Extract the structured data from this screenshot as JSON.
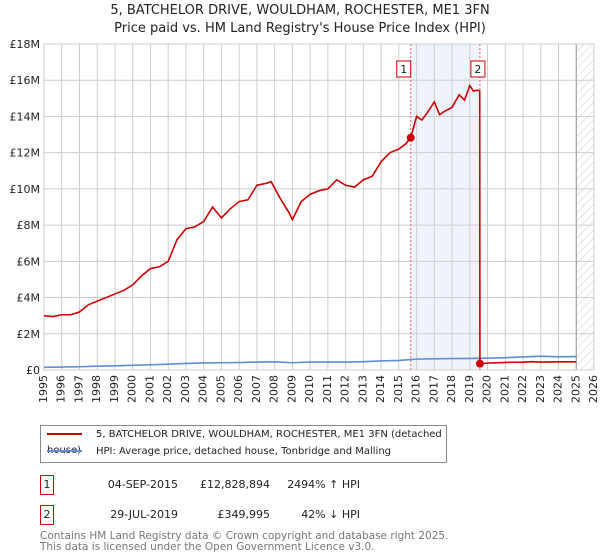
{
  "title_line1": "5, BATCHELOR DRIVE, WOULDHAM, ROCHESTER, ME1 3FN",
  "title_line2": "Price paid vs. HM Land Registry's House Price Index (HPI)",
  "legend": [
    {
      "label": "5, BATCHELOR DRIVE, WOULDHAM, ROCHESTER, ME1 3FN (detached house)",
      "color": "#cc0000"
    },
    {
      "label": "HPI: Average price, detached house, Tonbridge and Malling",
      "color": "#5b8fd0"
    }
  ],
  "transactions": [
    {
      "num": "1",
      "date": "04-SEP-2015",
      "price": "£12,828,894",
      "hpi": "2494% ↑ HPI"
    },
    {
      "num": "2",
      "date": "29-JUL-2019",
      "price": "£349,995",
      "hpi": "42% ↓ HPI"
    }
  ],
  "footer_line1": "Contains HM Land Registry data © Crown copyright and database right 2025.",
  "footer_line2": "This data is licensed under the Open Government Licence v3.0.",
  "chart_data": {
    "type": "line",
    "xlim": [
      1995,
      2026
    ],
    "ylim": [
      0,
      18000000
    ],
    "yticks": [
      0,
      2000000,
      4000000,
      6000000,
      8000000,
      10000000,
      12000000,
      14000000,
      16000000,
      18000000
    ],
    "ytick_labels": [
      "£0",
      "£2M",
      "£4M",
      "£6M",
      "£8M",
      "£10M",
      "£12M",
      "£14M",
      "£16M",
      "£18M"
    ],
    "xticks": [
      1995,
      1996,
      1997,
      1998,
      1999,
      2000,
      2001,
      2002,
      2003,
      2004,
      2005,
      2006,
      2007,
      2008,
      2009,
      2010,
      2011,
      2012,
      2013,
      2014,
      2015,
      2016,
      2017,
      2018,
      2019,
      2020,
      2021,
      2022,
      2023,
      2024,
      2025,
      2026
    ],
    "grid": true,
    "shaded_period": [
      2015.67,
      2019.57
    ],
    "future_hatch_from": 2025.0,
    "markers": [
      {
        "label": "1",
        "x": 2015.67,
        "y": 12828894
      },
      {
        "label": "2",
        "x": 2019.57,
        "y": 349995
      }
    ],
    "series": [
      {
        "name": "5, BATCHELOR DRIVE, WOULDHAM, ROCHESTER, ME1 3FN (detached house)",
        "color": "#cc0000",
        "x": [
          1995,
          1995.5,
          1996,
          1996.5,
          1997,
          1997.5,
          1998,
          1998.5,
          1999,
          1999.5,
          2000,
          2000.5,
          2001,
          2001.5,
          2002,
          2002.5,
          2003,
          2003.5,
          2004,
          2004.5,
          2005,
          2005.5,
          2006,
          2006.5,
          2007,
          2007.5,
          2007.8,
          2008.3,
          2008.8,
          2009,
          2009.5,
          2010,
          2010.5,
          2011,
          2011.5,
          2012,
          2012.5,
          2013,
          2013.5,
          2014,
          2014.5,
          2015,
          2015.4,
          2015.67,
          2016,
          2016.3,
          2016.6,
          2017,
          2017.3,
          2017.6,
          2018,
          2018.4,
          2018.7,
          2019,
          2019.2,
          2019.45,
          2019.56,
          2019.57,
          2020,
          2021,
          2022,
          2022.5,
          2023,
          2024,
          2025
        ],
        "y": [
          3000000,
          2950000,
          3050000,
          3050000,
          3200000,
          3600000,
          3800000,
          4000000,
          4200000,
          4400000,
          4700000,
          5200000,
          5600000,
          5700000,
          6000000,
          7200000,
          7800000,
          7900000,
          8200000,
          9000000,
          8400000,
          8900000,
          9300000,
          9400000,
          10200000,
          10300000,
          10400000,
          9500000,
          8700000,
          8300000,
          9300000,
          9700000,
          9900000,
          10000000,
          10500000,
          10200000,
          10100000,
          10500000,
          10700000,
          11500000,
          12000000,
          12200000,
          12500000,
          12828894,
          14000000,
          13800000,
          14200000,
          14800000,
          14100000,
          14300000,
          14500000,
          15200000,
          14900000,
          15700000,
          15400000,
          15450000,
          15400000,
          349995,
          380000,
          420000,
          430000,
          460000,
          440000,
          450000,
          450000
        ]
      },
      {
        "name": "HPI: Average price, detached house, Tonbridge and Malling",
        "color": "#5b8fd0",
        "x": [
          1995,
          1996,
          1997,
          1998,
          1999,
          2000,
          2001,
          2002,
          2003,
          2004,
          2005,
          2006,
          2007,
          2008,
          2009,
          2010,
          2011,
          2012,
          2013,
          2014,
          2015,
          2016,
          2017,
          2018,
          2019,
          2020,
          2021,
          2022,
          2023,
          2024,
          2025
        ],
        "y": [
          150000,
          160000,
          180000,
          210000,
          230000,
          260000,
          290000,
          320000,
          360000,
          390000,
          400000,
          410000,
          440000,
          450000,
          400000,
          440000,
          440000,
          440000,
          460000,
          500000,
          530000,
          600000,
          620000,
          630000,
          640000,
          650000,
          680000,
          720000,
          760000,
          730000,
          740000
        ]
      }
    ]
  }
}
